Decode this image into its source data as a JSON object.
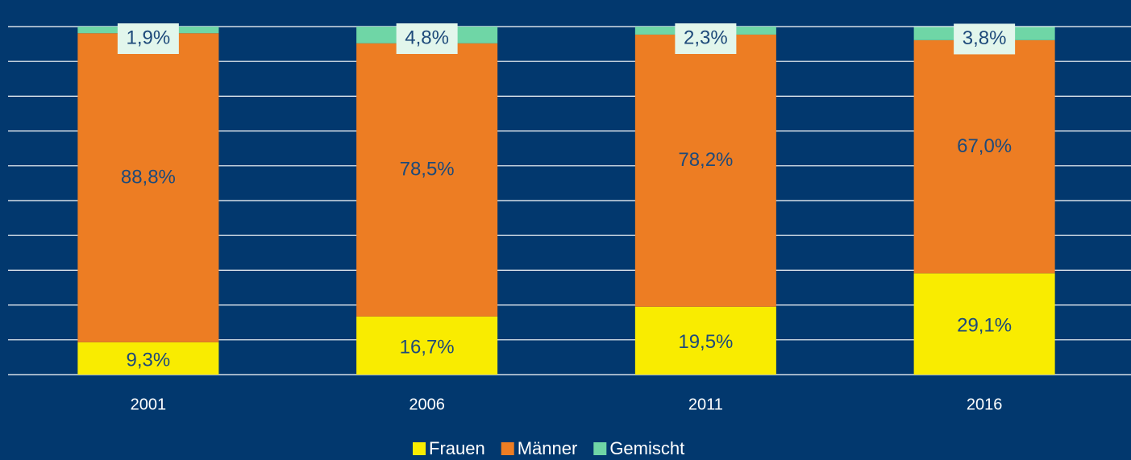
{
  "chart_data": {
    "type": "stacked_bar",
    "categories": [
      "2001",
      "2006",
      "2011",
      "2016"
    ],
    "series": [
      {
        "name": "Frauen",
        "color": "#f9ec00",
        "values": [
          9.3,
          16.7,
          19.5,
          29.1
        ],
        "value_labels": [
          "9,3%",
          "16,7%",
          "19,5%",
          "29,1%"
        ]
      },
      {
        "name": "Männer",
        "color": "#ed7d23",
        "values": [
          88.8,
          78.5,
          78.2,
          67.0
        ],
        "value_labels": [
          "88,8%",
          "78,5%",
          "78,2%",
          "67,0%"
        ]
      },
      {
        "name": "Gemischt",
        "color": "#6fd6a6",
        "values": [
          1.9,
          4.8,
          2.3,
          3.8
        ],
        "value_labels": [
          "1,9%",
          "4,8%",
          "2,3%",
          "3,8%"
        ]
      }
    ],
    "ylim": [
      0,
      100
    ],
    "yticks": [
      0,
      10,
      20,
      30,
      40,
      50,
      60,
      70,
      80,
      90,
      100
    ],
    "grid": true,
    "legend": "bottom"
  }
}
